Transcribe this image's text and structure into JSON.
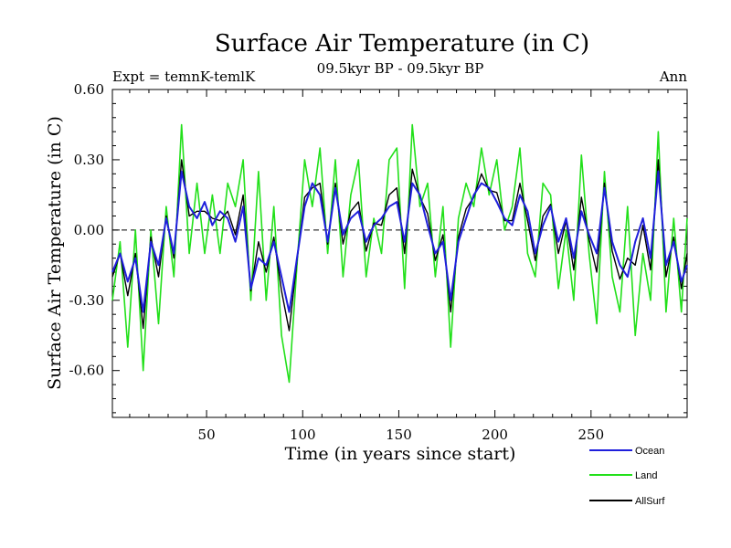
{
  "chart_data": {
    "type": "line",
    "title": "Surface Air Temperature (in C)",
    "subtitle": "09.5kyr BP - 09.5kyr BP",
    "expt_label": "Expt = temnK-temlK",
    "season_label": "Ann",
    "xlabel": "Time (in years since start)",
    "ylabel": "Surface Air Temperature (in C)",
    "xlim": [
      1,
      300
    ],
    "ylim": [
      -0.8,
      0.6
    ],
    "xticks": [
      50,
      100,
      150,
      200,
      250
    ],
    "xtick_labels": [
      "50",
      "100",
      "150",
      "200",
      "250"
    ],
    "yticks": [
      0.6,
      0.3,
      0.0,
      -0.3,
      -0.6
    ],
    "ytick_labels": [
      "0.60",
      "0.30",
      "0.00",
      "-0.30",
      "-0.60"
    ],
    "zero_line": "dashed",
    "legend_position": "bottom-right, below plot",
    "series": [
      {
        "name": "Ocean",
        "color": "#1f1fdc",
        "x": [
          1,
          5,
          9,
          13,
          17,
          21,
          25,
          29,
          33,
          37,
          41,
          45,
          49,
          53,
          57,
          61,
          65,
          69,
          73,
          77,
          81,
          85,
          89,
          93,
          97,
          101,
          105,
          109,
          113,
          117,
          121,
          125,
          129,
          133,
          137,
          141,
          145,
          149,
          153,
          157,
          161,
          165,
          169,
          173,
          177,
          181,
          185,
          189,
          193,
          197,
          201,
          205,
          209,
          213,
          217,
          221,
          225,
          229,
          233,
          237,
          241,
          245,
          249,
          253,
          257,
          261,
          265,
          269,
          273,
          277,
          281,
          285,
          289,
          293,
          297,
          300
        ],
        "values": [
          -0.18,
          -0.1,
          -0.22,
          -0.12,
          -0.35,
          -0.05,
          -0.15,
          0.05,
          -0.1,
          0.25,
          0.1,
          0.05,
          0.12,
          0.02,
          0.08,
          0.05,
          -0.05,
          0.1,
          -0.25,
          -0.12,
          -0.15,
          -0.05,
          -0.2,
          -0.35,
          -0.12,
          0.1,
          0.2,
          0.15,
          -0.05,
          0.18,
          -0.02,
          0.05,
          0.08,
          -0.05,
          0.02,
          0.05,
          0.1,
          0.12,
          -0.05,
          0.2,
          0.15,
          0.02,
          -0.1,
          -0.05,
          -0.3,
          -0.05,
          0.05,
          0.15,
          0.2,
          0.18,
          0.12,
          0.05,
          0.02,
          0.15,
          0.08,
          -0.1,
          0.02,
          0.1,
          -0.05,
          0.05,
          -0.12,
          0.08,
          -0.02,
          -0.1,
          0.18,
          -0.05,
          -0.15,
          -0.2,
          -0.05,
          0.05,
          -0.12,
          0.25,
          -0.15,
          -0.05,
          -0.22,
          -0.15
        ]
      },
      {
        "name": "Land",
        "color": "#22e01a",
        "x": [
          1,
          5,
          9,
          13,
          17,
          21,
          25,
          29,
          33,
          37,
          41,
          45,
          49,
          53,
          57,
          61,
          65,
          69,
          73,
          77,
          81,
          85,
          89,
          93,
          97,
          101,
          105,
          109,
          113,
          117,
          121,
          125,
          129,
          133,
          137,
          141,
          145,
          149,
          153,
          157,
          161,
          165,
          169,
          173,
          177,
          181,
          185,
          189,
          193,
          197,
          201,
          205,
          209,
          213,
          217,
          221,
          225,
          229,
          233,
          237,
          241,
          245,
          249,
          253,
          257,
          261,
          265,
          269,
          273,
          277,
          281,
          285,
          289,
          293,
          297,
          300
        ],
        "values": [
          -0.3,
          -0.05,
          -0.5,
          0.0,
          -0.6,
          0.0,
          -0.4,
          0.1,
          -0.2,
          0.45,
          -0.1,
          0.2,
          -0.1,
          0.15,
          -0.1,
          0.2,
          0.1,
          0.3,
          -0.3,
          0.25,
          -0.3,
          0.1,
          -0.45,
          -0.65,
          -0.15,
          0.3,
          0.1,
          0.35,
          -0.1,
          0.3,
          -0.2,
          0.15,
          0.3,
          -0.2,
          0.05,
          -0.1,
          0.3,
          0.35,
          -0.25,
          0.45,
          0.1,
          0.2,
          -0.2,
          0.1,
          -0.5,
          0.05,
          0.2,
          0.1,
          0.35,
          0.15,
          0.3,
          0.0,
          0.1,
          0.35,
          -0.1,
          -0.2,
          0.2,
          0.15,
          -0.25,
          0.0,
          -0.3,
          0.32,
          -0.1,
          -0.4,
          0.25,
          -0.2,
          -0.35,
          0.1,
          -0.45,
          -0.1,
          -0.3,
          0.42,
          -0.35,
          0.05,
          -0.35,
          0.05
        ]
      },
      {
        "name": "AllSurf",
        "color": "#000000",
        "x": [
          1,
          5,
          9,
          13,
          17,
          21,
          25,
          29,
          33,
          37,
          41,
          45,
          49,
          53,
          57,
          61,
          65,
          69,
          73,
          77,
          81,
          85,
          89,
          93,
          97,
          101,
          105,
          109,
          113,
          117,
          121,
          125,
          129,
          133,
          137,
          141,
          145,
          149,
          153,
          157,
          161,
          165,
          169,
          173,
          177,
          181,
          185,
          189,
          193,
          197,
          201,
          205,
          209,
          213,
          217,
          221,
          225,
          229,
          233,
          237,
          241,
          245,
          249,
          253,
          257,
          261,
          265,
          269,
          273,
          277,
          281,
          285,
          289,
          293,
          297,
          300
        ],
        "values": [
          -0.2,
          -0.1,
          -0.28,
          -0.1,
          -0.42,
          -0.03,
          -0.2,
          0.06,
          -0.12,
          0.3,
          0.06,
          0.08,
          0.08,
          0.05,
          0.04,
          0.08,
          -0.02,
          0.15,
          -0.26,
          -0.05,
          -0.18,
          -0.03,
          -0.26,
          -0.43,
          -0.13,
          0.14,
          0.18,
          0.2,
          -0.06,
          0.2,
          -0.06,
          0.08,
          0.12,
          -0.09,
          0.03,
          0.02,
          0.15,
          0.18,
          -0.1,
          0.26,
          0.14,
          0.07,
          -0.13,
          -0.02,
          -0.35,
          -0.03,
          0.09,
          0.14,
          0.24,
          0.17,
          0.16,
          0.04,
          0.04,
          0.2,
          0.04,
          -0.13,
          0.06,
          0.11,
          -0.1,
          0.04,
          -0.17,
          0.14,
          -0.04,
          -0.18,
          0.2,
          -0.09,
          -0.21,
          -0.12,
          -0.15,
          0.02,
          -0.17,
          0.3,
          -0.2,
          -0.03,
          -0.25,
          -0.1
        ]
      }
    ]
  }
}
